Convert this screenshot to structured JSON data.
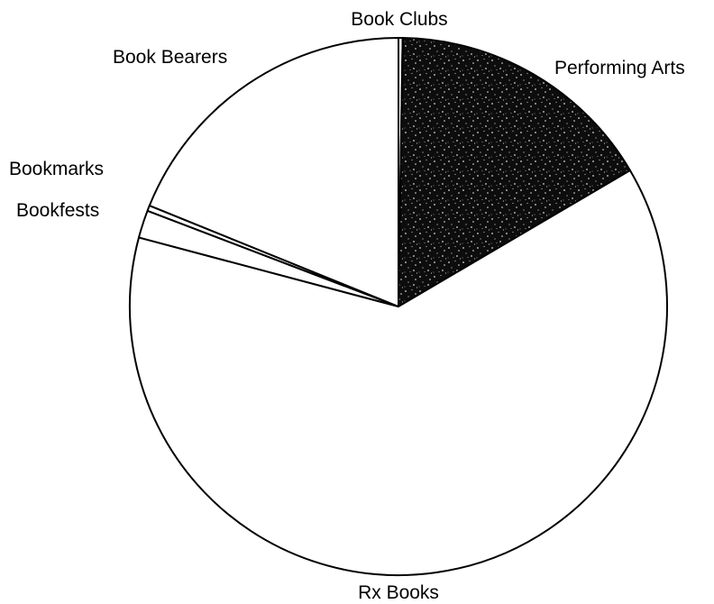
{
  "chart_data": {
    "type": "pie",
    "title": "",
    "slices": [
      {
        "label": "Book Clubs",
        "value": 0.3,
        "fill": "#ffffff"
      },
      {
        "label": "Performing Arts",
        "value": 19.6,
        "fill": "#111111",
        "pattern": "speckled"
      },
      {
        "label": "Rx Books",
        "value": 75.3,
        "fill": "#ffffff"
      },
      {
        "label": "Bookfests",
        "value": 2.0,
        "fill": "#ffffff"
      },
      {
        "label": "Bookmarks",
        "value": 0.4,
        "fill": "#ffffff"
      },
      {
        "label": "Book Bearers",
        "value": 22.7,
        "fill": "#ffffff"
      }
    ],
    "start_angle_deg": 0,
    "direction": "clockwise",
    "legend": "none",
    "data_labels": "outside"
  }
}
